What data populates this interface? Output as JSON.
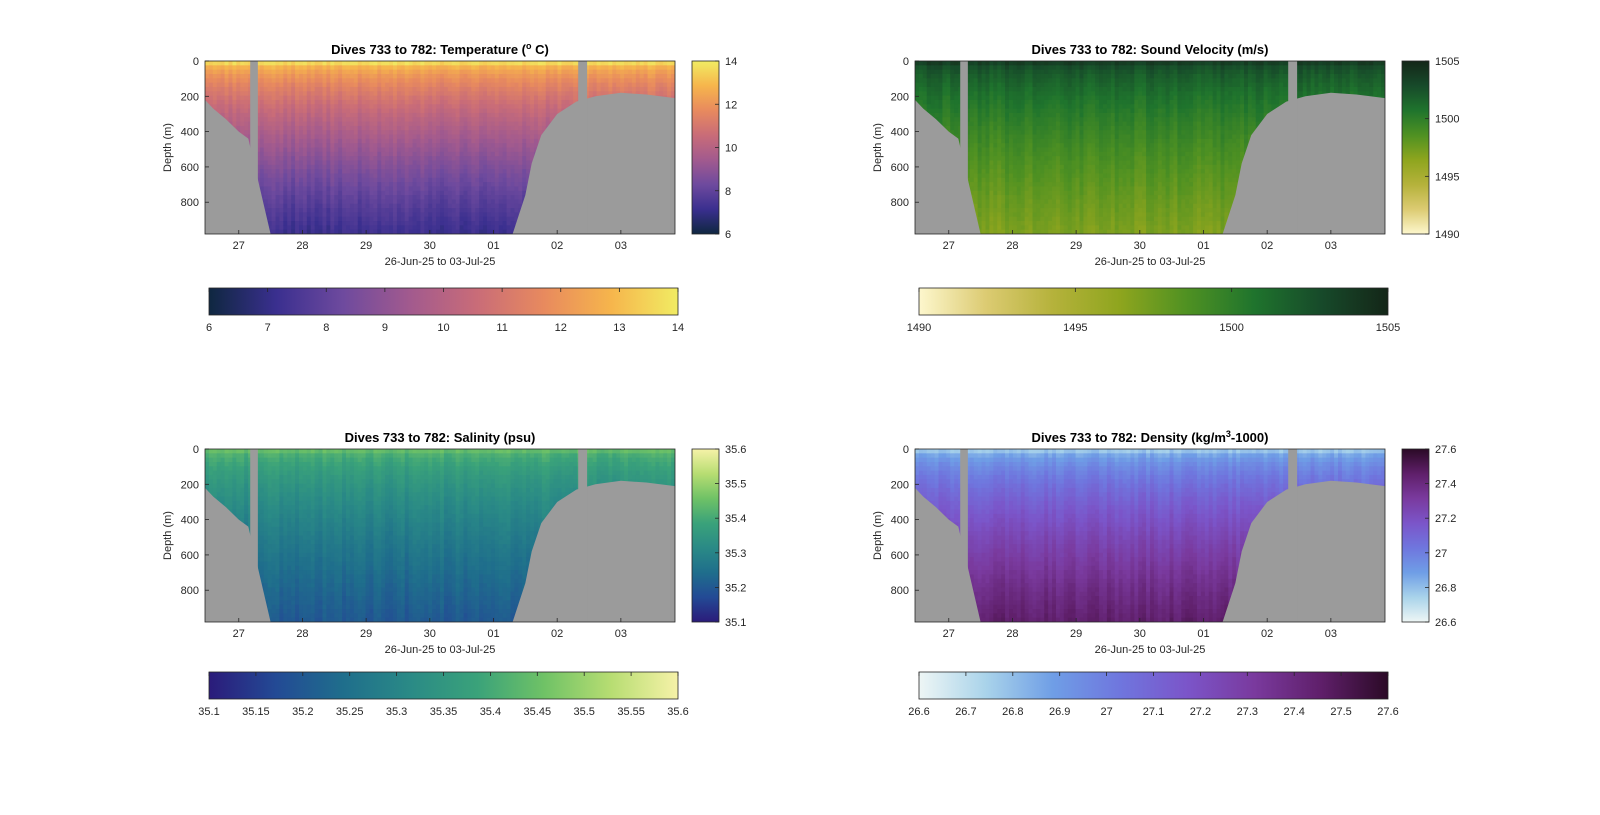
{
  "chart_data": [
    {
      "type": "heatmap",
      "title_main": "Dives 733 to 782: Temperature (",
      "title_sup": "o",
      "title_tail": " C)",
      "xlabel": "26-Jun-25 to 03-Jul-25",
      "ylabel": "Depth (m)",
      "xticks": [
        "27",
        "28",
        "29",
        "30",
        "01",
        "02",
        "03"
      ],
      "yticks": [
        "0",
        "200",
        "400",
        "600",
        "800"
      ],
      "ylim": [
        0,
        980
      ],
      "xlim": [
        26.47,
        33.85
      ],
      "colormap": [
        "#0f2740",
        "#3a2f8f",
        "#6e4a9e",
        "#a25a8e",
        "#c96c78",
        "#e88a5e",
        "#f6b54c",
        "#f1ec63"
      ],
      "clim": [
        6,
        14
      ],
      "cbar_right_ticks": [
        "6",
        "8",
        "10",
        "12",
        "14"
      ],
      "cbar_bottom_ticks": [
        "6",
        "7",
        "8",
        "9",
        "10",
        "11",
        "12",
        "13",
        "14"
      ],
      "surface_value": 13.6,
      "deep_value": 7.2,
      "bottom_depth": [
        {
          "x": 26.47,
          "depth": 220
        },
        {
          "x": 26.6,
          "depth": 270
        },
        {
          "x": 26.8,
          "depth": 330
        },
        {
          "x": 27.0,
          "depth": 400
        },
        {
          "x": 27.15,
          "depth": 440
        },
        {
          "x": 27.5,
          "depth": 980
        },
        {
          "x": 31.3,
          "depth": 980
        },
        {
          "x": 31.5,
          "depth": 760
        },
        {
          "x": 31.6,
          "depth": 580
        },
        {
          "x": 31.75,
          "depth": 420
        },
        {
          "x": 32.0,
          "depth": 300
        },
        {
          "x": 32.3,
          "depth": 230
        },
        {
          "x": 32.6,
          "depth": 200
        },
        {
          "x": 33.0,
          "depth": 180
        },
        {
          "x": 33.4,
          "depth": 190
        },
        {
          "x": 33.85,
          "depth": 210
        }
      ],
      "gaps": [
        {
          "x0": 27.18,
          "x1": 27.3
        },
        {
          "x0": 32.33,
          "x1": 32.47
        }
      ]
    },
    {
      "type": "heatmap",
      "title_main": "Dives 733 to 782: Sound Velocity (m/s)",
      "title_sup": "",
      "title_tail": "",
      "xlabel": "26-Jun-25 to 03-Jul-25",
      "ylabel": "Depth (m)",
      "xticks": [
        "27",
        "28",
        "29",
        "30",
        "01",
        "02",
        "03"
      ],
      "yticks": [
        "0",
        "200",
        "400",
        "600",
        "800"
      ],
      "ylim": [
        0,
        980
      ],
      "xlim": [
        26.47,
        33.85
      ],
      "colormap": [
        "#fdf7cd",
        "#dccb72",
        "#b5b23b",
        "#8ea51e",
        "#4f9122",
        "#1f742d",
        "#174a2a",
        "#142618"
      ],
      "clim": [
        1490,
        1505
      ],
      "cbar_right_ticks": [
        "1490",
        "1495",
        "1500",
        "1505"
      ],
      "cbar_bottom_ticks": [
        "1490",
        "1495",
        "1500",
        "1505"
      ],
      "surface_value": 1503.5,
      "deep_value": 1497.0,
      "bottom_depth": [
        {
          "x": 26.47,
          "depth": 220
        },
        {
          "x": 26.6,
          "depth": 270
        },
        {
          "x": 26.8,
          "depth": 330
        },
        {
          "x": 27.0,
          "depth": 400
        },
        {
          "x": 27.15,
          "depth": 440
        },
        {
          "x": 27.5,
          "depth": 980
        },
        {
          "x": 31.3,
          "depth": 980
        },
        {
          "x": 31.5,
          "depth": 760
        },
        {
          "x": 31.6,
          "depth": 580
        },
        {
          "x": 31.75,
          "depth": 420
        },
        {
          "x": 32.0,
          "depth": 300
        },
        {
          "x": 32.3,
          "depth": 230
        },
        {
          "x": 32.6,
          "depth": 200
        },
        {
          "x": 33.0,
          "depth": 180
        },
        {
          "x": 33.4,
          "depth": 190
        },
        {
          "x": 33.85,
          "depth": 210
        }
      ],
      "gaps": [
        {
          "x0": 27.18,
          "x1": 27.3
        },
        {
          "x0": 32.33,
          "x1": 32.47
        }
      ]
    },
    {
      "type": "heatmap",
      "title_main": "Dives 733 to 782: Salinity (psu)",
      "title_sup": "",
      "title_tail": "",
      "xlabel": "26-Jun-25 to 03-Jul-25",
      "ylabel": "Depth (m)",
      "xticks": [
        "27",
        "28",
        "29",
        "30",
        "01",
        "02",
        "03"
      ],
      "yticks": [
        "0",
        "200",
        "400",
        "600",
        "800"
      ],
      "ylim": [
        0,
        980
      ],
      "xlim": [
        26.47,
        33.85
      ],
      "colormap": [
        "#2b1b7a",
        "#234a95",
        "#1f6e8c",
        "#2a8a86",
        "#3aa27a",
        "#6fc266",
        "#b7dd72",
        "#f6f2a8"
      ],
      "clim": [
        35.1,
        35.6
      ],
      "cbar_right_ticks": [
        "35.1",
        "35.2",
        "35.3",
        "35.4",
        "35.5",
        "35.6"
      ],
      "cbar_bottom_ticks": [
        "35.1",
        "35.15",
        "35.2",
        "35.25",
        "35.3",
        "35.35",
        "35.4",
        "35.45",
        "35.5",
        "35.55",
        "35.6"
      ],
      "surface_value": 35.44,
      "deep_value": 35.2,
      "bottom_depth": [
        {
          "x": 26.47,
          "depth": 220
        },
        {
          "x": 26.6,
          "depth": 270
        },
        {
          "x": 26.8,
          "depth": 330
        },
        {
          "x": 27.0,
          "depth": 400
        },
        {
          "x": 27.15,
          "depth": 440
        },
        {
          "x": 27.5,
          "depth": 980
        },
        {
          "x": 31.3,
          "depth": 980
        },
        {
          "x": 31.5,
          "depth": 760
        },
        {
          "x": 31.6,
          "depth": 580
        },
        {
          "x": 31.75,
          "depth": 420
        },
        {
          "x": 32.0,
          "depth": 300
        },
        {
          "x": 32.3,
          "depth": 230
        },
        {
          "x": 32.6,
          "depth": 200
        },
        {
          "x": 33.0,
          "depth": 180
        },
        {
          "x": 33.4,
          "depth": 190
        },
        {
          "x": 33.85,
          "depth": 210
        }
      ],
      "gaps": [
        {
          "x0": 27.18,
          "x1": 27.3
        },
        {
          "x0": 32.33,
          "x1": 32.47
        }
      ]
    },
    {
      "type": "heatmap",
      "title_main": "Dives 733 to 782: Density (kg/m",
      "title_sup": "3",
      "title_tail": "-1000)",
      "xlabel": "26-Jun-25 to 03-Jul-25",
      "ylabel": "Depth (m)",
      "xticks": [
        "27",
        "28",
        "29",
        "30",
        "01",
        "02",
        "03"
      ],
      "yticks": [
        "0",
        "200",
        "400",
        "600",
        "800"
      ],
      "ylim": [
        0,
        980
      ],
      "xlim": [
        26.47,
        33.85
      ],
      "colormap": [
        "#eef6f5",
        "#a9d3ea",
        "#6f9ee6",
        "#6f76de",
        "#7b55c9",
        "#7a3a9e",
        "#5f1f6a",
        "#2b0a26"
      ],
      "clim": [
        26.6,
        27.6
      ],
      "cbar_right_ticks": [
        "26.6",
        "26.8",
        "27",
        "27.2",
        "27.4",
        "27.6"
      ],
      "cbar_bottom_ticks": [
        "26.6",
        "26.7",
        "26.8",
        "26.9",
        "27",
        "27.1",
        "27.2",
        "27.3",
        "27.4",
        "27.5",
        "27.6"
      ],
      "surface_value": 26.78,
      "deep_value": 27.45,
      "bottom_depth": [
        {
          "x": 26.47,
          "depth": 220
        },
        {
          "x": 26.6,
          "depth": 270
        },
        {
          "x": 26.8,
          "depth": 330
        },
        {
          "x": 27.0,
          "depth": 400
        },
        {
          "x": 27.15,
          "depth": 440
        },
        {
          "x": 27.5,
          "depth": 980
        },
        {
          "x": 31.3,
          "depth": 980
        },
        {
          "x": 31.5,
          "depth": 760
        },
        {
          "x": 31.6,
          "depth": 580
        },
        {
          "x": 31.75,
          "depth": 420
        },
        {
          "x": 32.0,
          "depth": 300
        },
        {
          "x": 32.3,
          "depth": 230
        },
        {
          "x": 32.6,
          "depth": 200
        },
        {
          "x": 33.0,
          "depth": 180
        },
        {
          "x": 33.4,
          "depth": 190
        },
        {
          "x": 33.85,
          "depth": 210
        }
      ],
      "gaps": [
        {
          "x0": 27.18,
          "x1": 27.3
        },
        {
          "x0": 32.33,
          "x1": 32.47
        }
      ]
    }
  ]
}
